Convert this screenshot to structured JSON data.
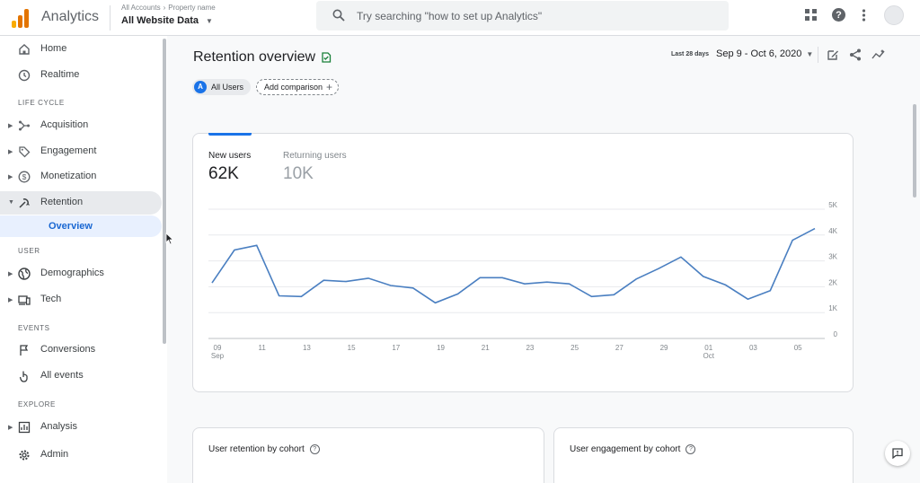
{
  "header": {
    "app_name": "Analytics",
    "breadcrumb": [
      "All Accounts",
      "Property name"
    ],
    "property": "All Website Data",
    "search_placeholder": "Try searching \"how to set up Analytics\""
  },
  "sidebar": {
    "items": [
      {
        "label": "Home"
      },
      {
        "label": "Realtime"
      }
    ],
    "sections": {
      "life_cycle": "LIFE CYCLE",
      "user": "USER",
      "events": "EVENTS",
      "explore": "EXPLORE"
    },
    "life_cycle_items": [
      {
        "label": "Acquisition"
      },
      {
        "label": "Engagement"
      },
      {
        "label": "Monetization"
      },
      {
        "label": "Retention"
      }
    ],
    "retention_sub": "Overview",
    "user_items": [
      {
        "label": "Demographics"
      },
      {
        "label": "Tech"
      }
    ],
    "events_items": [
      {
        "label": "Conversions"
      },
      {
        "label": "All events"
      }
    ],
    "explore_items": [
      {
        "label": "Analysis"
      }
    ],
    "admin": "Admin"
  },
  "main": {
    "title": "Retention overview",
    "chip_all_users": "All Users",
    "chip_all_users_letter": "A",
    "add_comparison": "Add comparison",
    "date_caption": "Last 28 days",
    "date_range": "Sep 9 - Oct 6, 2020"
  },
  "metrics": {
    "new_users_label": "New users",
    "new_users_value": "62K",
    "returning_label": "Returning users",
    "returning_value": "10K"
  },
  "cards": {
    "cohort_retention": "User retention by cohort",
    "cohort_engagement": "User engagement by cohort"
  },
  "colors": {
    "accent": "#1a73e8",
    "line": "#4a7fc1",
    "logo": [
      "#f9ab00",
      "#e37400",
      "#e37400"
    ]
  },
  "chart_data": {
    "type": "line",
    "series": [
      {
        "values": [
          2150,
          3420,
          3600,
          1650,
          1620,
          2250,
          2200,
          2330,
          2050,
          1950,
          1380,
          1720,
          2350,
          2350,
          2110,
          2180,
          2110,
          1620,
          1690,
          2300,
          2700,
          3150,
          2400,
          2070,
          1520,
          1850,
          3800,
          4250
        ]
      }
    ],
    "x_ticks": [
      {
        "i": 0,
        "label": "09",
        "sub": "Sep"
      },
      {
        "i": 2,
        "label": "11",
        "sub": ""
      },
      {
        "i": 4,
        "label": "13",
        "sub": ""
      },
      {
        "i": 6,
        "label": "15",
        "sub": ""
      },
      {
        "i": 8,
        "label": "17",
        "sub": ""
      },
      {
        "i": 10,
        "label": "19",
        "sub": ""
      },
      {
        "i": 12,
        "label": "21",
        "sub": ""
      },
      {
        "i": 14,
        "label": "23",
        "sub": ""
      },
      {
        "i": 16,
        "label": "25",
        "sub": ""
      },
      {
        "i": 18,
        "label": "27",
        "sub": ""
      },
      {
        "i": 20,
        "label": "29",
        "sub": ""
      },
      {
        "i": 22,
        "label": "01",
        "sub": "Oct"
      },
      {
        "i": 24,
        "label": "03",
        "sub": ""
      },
      {
        "i": 26,
        "label": "05",
        "sub": ""
      }
    ],
    "y_ticks": [
      {
        "v": 0,
        "label": "0"
      },
      {
        "v": 1000,
        "label": "1K"
      },
      {
        "v": 2000,
        "label": "2K"
      },
      {
        "v": 3000,
        "label": "3K"
      },
      {
        "v": 4000,
        "label": "4K"
      },
      {
        "v": 5000,
        "label": "5K"
      }
    ],
    "ylim": [
      0,
      5000
    ],
    "grid": true
  }
}
